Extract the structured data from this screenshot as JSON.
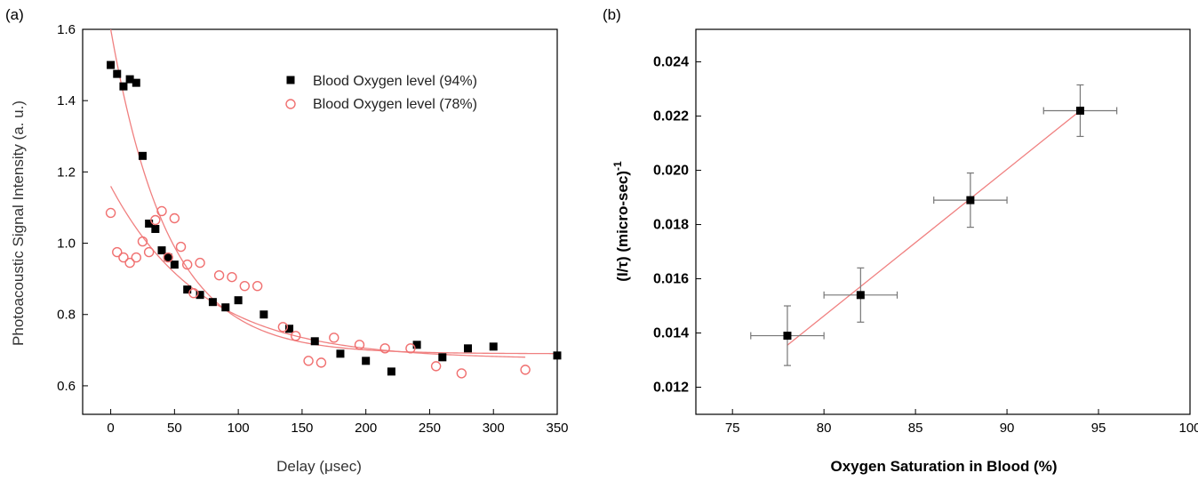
{
  "chart_data": [
    {
      "panel_label": "(a)",
      "type": "scatter",
      "xlabel": "Delay (μsec)",
      "ylabel": "Photoacoustic Signal Intensity (a. u.)",
      "xlim": [
        -22,
        350
      ],
      "ylim": [
        0.52,
        1.6
      ],
      "x_ticks": [
        "0",
        "50",
        "100",
        "150",
        "200",
        "250",
        "300",
        "350"
      ],
      "y_ticks": [
        "0.6",
        "0.8",
        "1.0",
        "1.2",
        "1.4",
        "1.6"
      ],
      "legend_position": "top-right",
      "series": [
        {
          "name": "Blood Oxygen level (94%)",
          "marker": "filled-square",
          "color": "#000000",
          "fit_color": "#f08080",
          "x": [
            0,
            5,
            10,
            15,
            20,
            25,
            30,
            35,
            40,
            45,
            50,
            60,
            70,
            80,
            90,
            100,
            120,
            140,
            160,
            180,
            200,
            220,
            240,
            260,
            280,
            300,
            350
          ],
          "y": [
            1.5,
            1.475,
            1.44,
            1.46,
            1.45,
            1.245,
            1.055,
            1.04,
            0.98,
            0.96,
            0.94,
            0.87,
            0.855,
            0.835,
            0.82,
            0.84,
            0.8,
            0.76,
            0.725,
            0.69,
            0.67,
            0.64,
            0.715,
            0.68,
            0.705,
            0.71,
            0.685
          ],
          "fit": {
            "model": "exp_decay",
            "y0": 0.69,
            "A": 0.91,
            "tau": 45,
            "x_range": [
              0,
              350
            ]
          }
        },
        {
          "name": "Blood Oxygen level (78%)",
          "marker": "open-circle",
          "color": "#f07070",
          "fit_color": "#f08080",
          "x": [
            0,
            5,
            10,
            15,
            20,
            25,
            30,
            35,
            40,
            45,
            50,
            55,
            60,
            65,
            70,
            85,
            95,
            105,
            115,
            135,
            145,
            155,
            165,
            175,
            195,
            215,
            235,
            255,
            275,
            325
          ],
          "y": [
            1.085,
            0.975,
            0.96,
            0.945,
            0.96,
            1.005,
            0.975,
            1.065,
            1.09,
            0.96,
            1.07,
            0.99,
            0.94,
            0.86,
            0.945,
            0.91,
            0.905,
            0.88,
            0.88,
            0.765,
            0.74,
            0.67,
            0.665,
            0.735,
            0.715,
            0.705,
            0.705,
            0.655,
            0.635,
            0.645
          ],
          "fit": {
            "model": "exp_decay",
            "y0": 0.675,
            "A": 0.485,
            "tau": 72,
            "x_range": [
              0,
              325
            ]
          }
        }
      ]
    },
    {
      "panel_label": "(b)",
      "type": "scatter",
      "xlabel": "Oxygen Saturation in Blood (%)",
      "ylabel": "(I/τ) (micro-sec)",
      "ylabel_superscript": "-1",
      "xlim": [
        73,
        100
      ],
      "ylim": [
        0.011,
        0.0252
      ],
      "x_ticks": [
        "75",
        "80",
        "85",
        "90",
        "95",
        "100"
      ],
      "y_ticks": [
        "0.012",
        "0.014",
        "0.016",
        "0.018",
        "0.020",
        "0.022",
        "0.024"
      ],
      "series": [
        {
          "marker": "filled-square",
          "color": "#000000",
          "x": [
            78,
            82,
            88,
            94
          ],
          "y": [
            0.0139,
            0.0154,
            0.0189,
            0.0222
          ],
          "x_error": [
            2,
            2,
            2,
            2
          ],
          "y_error": [
            0.0011,
            0.001,
            0.001,
            0.00095
          ],
          "fit": {
            "model": "linear",
            "color": "#f08080",
            "x_range": [
              78,
              94
            ],
            "y_range": [
              0.01355,
              0.0222
            ]
          }
        }
      ]
    }
  ]
}
